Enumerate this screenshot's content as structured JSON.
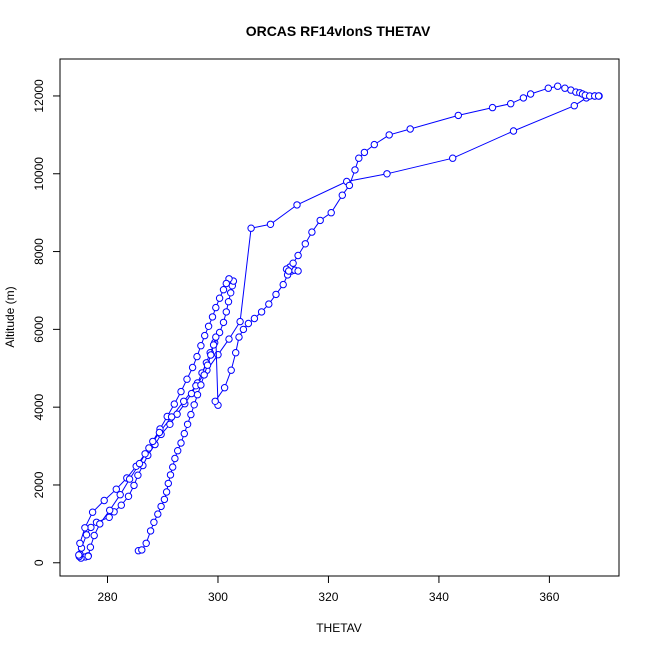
{
  "chart_data": {
    "type": "line",
    "title": "ORCAS RF14vlonS THETAV",
    "xlabel": "THETAV",
    "ylabel": "Altitude (m)",
    "xlim": [
      271.4,
      372.6
    ],
    "ylim": [
      -340,
      12950
    ],
    "xticks": [
      280,
      300,
      320,
      340,
      360
    ],
    "yticks": [
      0,
      2000,
      4000,
      6000,
      8000,
      10000,
      12000
    ],
    "grid": false,
    "legend": "none",
    "colors": {
      "series": "#0000ff",
      "axes": "#000000"
    },
    "markers": "open-circle",
    "series": [
      {
        "x": [
          276.5,
          276.0,
          275.2,
          274.9,
          275.0,
          275.3,
          276.2,
          277.0,
          278.0,
          280.3,
          281.2,
          282.5,
          283.8,
          284.8,
          285.5,
          286.4,
          287.3,
          288.6,
          289.7,
          291.3,
          292.6,
          294.0,
          295.2,
          296.3,
          297.1,
          297.9,
          298.6,
          299.4,
          300.3,
          301.0,
          301.5,
          301.9,
          302.3,
          302.6,
          302.8,
          302.0,
          301.5,
          301.0,
          300.3,
          299.6,
          299.0,
          298.3,
          297.6,
          296.9,
          296.2,
          295.4,
          294.4,
          293.3,
          292.1,
          290.8,
          289.5,
          288.2,
          286.8,
          285.2,
          283.5,
          281.6,
          279.4,
          277.3,
          275.9,
          275.0,
          274.8,
          276.5,
          276.9,
          277.6,
          278.6,
          280.4,
          282.3,
          284.0,
          285.8,
          287.5,
          289.4,
          291.6,
          293.8,
          296.0,
          298.0,
          300.0,
          302.0,
          304.0,
          306.0,
          309.5,
          314.3,
          323.3,
          330.6,
          342.5,
          353.5,
          364.5,
          366.7,
          368.2,
          369.0
        ],
        "y": [
          180,
          150,
          120,
          160,
          220,
          380,
          720,
          910,
          1040,
          1170,
          1310,
          1480,
          1710,
          1990,
          2250,
          2500,
          2760,
          3040,
          3300,
          3560,
          3820,
          4090,
          4350,
          4620,
          4880,
          5140,
          5400,
          5660,
          5920,
          6180,
          6450,
          6710,
          6940,
          7120,
          7240,
          7300,
          7180,
          7020,
          6800,
          6560,
          6320,
          6080,
          5840,
          5580,
          5300,
          5020,
          4720,
          4400,
          4080,
          3760,
          3440,
          3120,
          2800,
          2480,
          2180,
          1890,
          1600,
          1300,
          900,
          500,
          200,
          170,
          400,
          700,
          1000,
          1350,
          1750,
          2150,
          2550,
          2950,
          3350,
          3750,
          4150,
          4550,
          4950,
          5350,
          5750,
          6200,
          8600,
          8700,
          9200,
          9800,
          10000,
          10400,
          11100,
          11750,
          11950,
          12000,
          12000
        ]
      },
      {
        "x": [
          285.6,
          286.2,
          287.0,
          287.8,
          288.4,
          289.1,
          289.7,
          290.3,
          290.7,
          291.0,
          291.4,
          291.8,
          292.2,
          292.7,
          293.3,
          293.9,
          294.5,
          295.1,
          295.7,
          296.3,
          296.9,
          297.5,
          298.1,
          298.7,
          299.2,
          299.6,
          300.0,
          299.5,
          301.2,
          302.4,
          303.2,
          303.8,
          304.6,
          305.5,
          306.6,
          307.9,
          309.2,
          310.5,
          311.8,
          312.6,
          313.3,
          313.9,
          314.5,
          313.0,
          312.4,
          312.8,
          313.6,
          314.5,
          315.8,
          317.0,
          318.5,
          320.5,
          322.5,
          323.8,
          324.8,
          325.5,
          326.5,
          328.3,
          331.0,
          334.8,
          343.5,
          349.7,
          353.0,
          355.3,
          356.6,
          359.8,
          361.5,
          362.8,
          363.9,
          364.8,
          365.5,
          366.0,
          366.5,
          367.3,
          368.2,
          368.9
        ],
        "y": [
          310,
          330,
          500,
          820,
          1040,
          1250,
          1450,
          1630,
          1820,
          2040,
          2260,
          2460,
          2680,
          2880,
          3080,
          3320,
          3560,
          3810,
          4060,
          4320,
          4570,
          4830,
          5080,
          5340,
          5600,
          5800,
          4050,
          4150,
          4500,
          4950,
          5400,
          5800,
          6000,
          6150,
          6280,
          6450,
          6650,
          6900,
          7150,
          7400,
          7500,
          7520,
          7500,
          7600,
          7550,
          7500,
          7700,
          7900,
          8200,
          8500,
          8800,
          9000,
          9450,
          9700,
          10100,
          10400,
          10550,
          10750,
          11000,
          11150,
          11500,
          11700,
          11800,
          11950,
          12050,
          12200,
          12250,
          12200,
          12150,
          12100,
          12080,
          12050,
          12020,
          12000,
          12000,
          12000
        ]
      }
    ]
  }
}
